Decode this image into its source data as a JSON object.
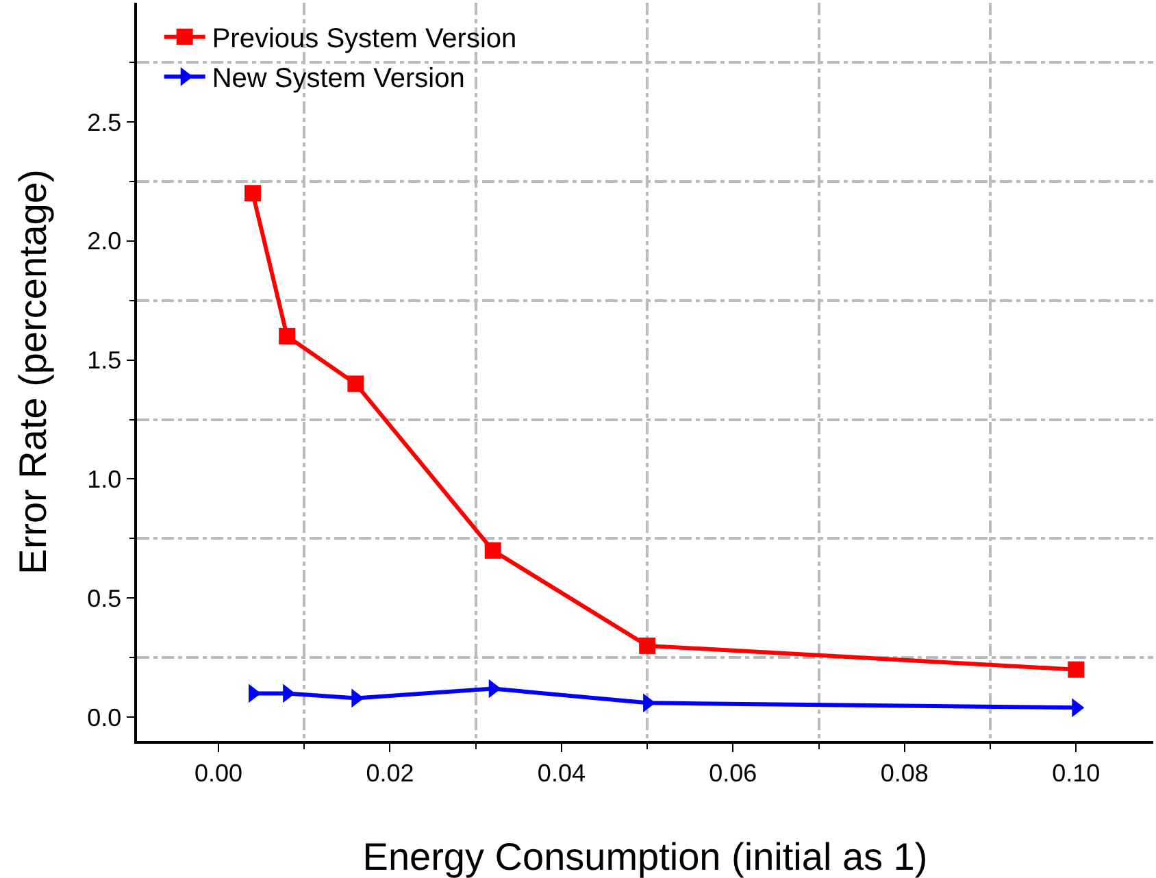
{
  "chart_data": {
    "type": "line",
    "xlabel": "Energy Consumption (initial as 1)",
    "ylabel": "Error Rate (percentage)",
    "x": [
      0.004,
      0.008,
      0.016,
      0.032,
      0.05,
      0.1
    ],
    "series": [
      {
        "name": "Previous System Version",
        "color": "#ff0000",
        "marker": "square",
        "values": [
          2.2,
          1.6,
          1.4,
          0.7,
          0.3,
          0.2
        ]
      },
      {
        "name": "New System Version",
        "color": "#0000ff",
        "marker": "triangle",
        "values": [
          0.1,
          0.1,
          0.08,
          0.12,
          0.06,
          0.04
        ]
      }
    ],
    "xlim": [
      -0.0095,
      0.109
    ],
    "xticks": [
      {
        "value": 0,
        "label": "0.00"
      },
      {
        "value": 0.02,
        "label": "0.02"
      },
      {
        "value": 0.04,
        "label": "0.04"
      },
      {
        "value": 0.06,
        "label": "0.06"
      },
      {
        "value": 0.08,
        "label": "0.08"
      },
      {
        "value": 0.1,
        "label": "0.10"
      }
    ],
    "ylim": [
      -0.1,
      3.0
    ],
    "yticks": [
      {
        "value": 0,
        "label": "0.0"
      },
      {
        "value": 0.5,
        "label": "0.5"
      },
      {
        "value": 1,
        "label": "1.0"
      },
      {
        "value": 1.5,
        "label": "1.5"
      },
      {
        "value": 2,
        "label": "2.0"
      },
      {
        "value": 2.5,
        "label": "2.5"
      }
    ],
    "grid": true,
    "legend": "top left",
    "line_style": "solid"
  }
}
